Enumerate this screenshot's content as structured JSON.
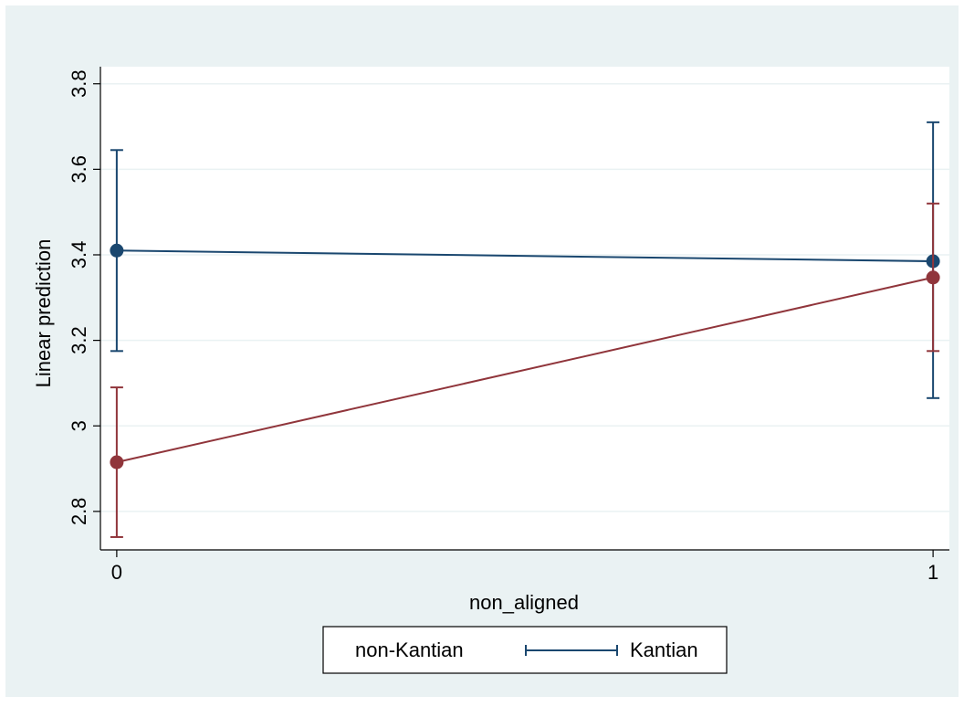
{
  "chart_data": {
    "type": "line",
    "title": "",
    "xlabel": "non_aligned",
    "ylabel": "Linear prediction",
    "x": [
      0,
      1
    ],
    "x_ticks": [
      0,
      1
    ],
    "x_tick_labels": [
      "0",
      "1"
    ],
    "y_ticks": [
      2.8,
      3.0,
      3.2,
      3.4,
      3.6,
      3.8
    ],
    "y_tick_labels": [
      "2.8",
      "3",
      "3.2",
      "3.4",
      "3.6",
      "3.8"
    ],
    "xlim": [
      -0.02,
      1.02
    ],
    "ylim": [
      2.71,
      3.84
    ],
    "grid": true,
    "legend_position": "bottom",
    "series": [
      {
        "name": "non-Kantian",
        "color": "#1a476f",
        "values": [
          3.41,
          3.385
        ],
        "ci_low": [
          3.175,
          3.065
        ],
        "ci_high": [
          3.645,
          3.71
        ]
      },
      {
        "name": "Kantian",
        "color": "#90353b",
        "values": [
          2.915,
          3.347
        ],
        "ci_low": [
          2.74,
          3.175
        ],
        "ci_high": [
          3.09,
          3.52
        ]
      }
    ]
  },
  "colors": {
    "outer_background": "#eaf2f3",
    "plot_background": "#ffffff",
    "grid": "#eaf2f3",
    "axis": "#000000"
  }
}
